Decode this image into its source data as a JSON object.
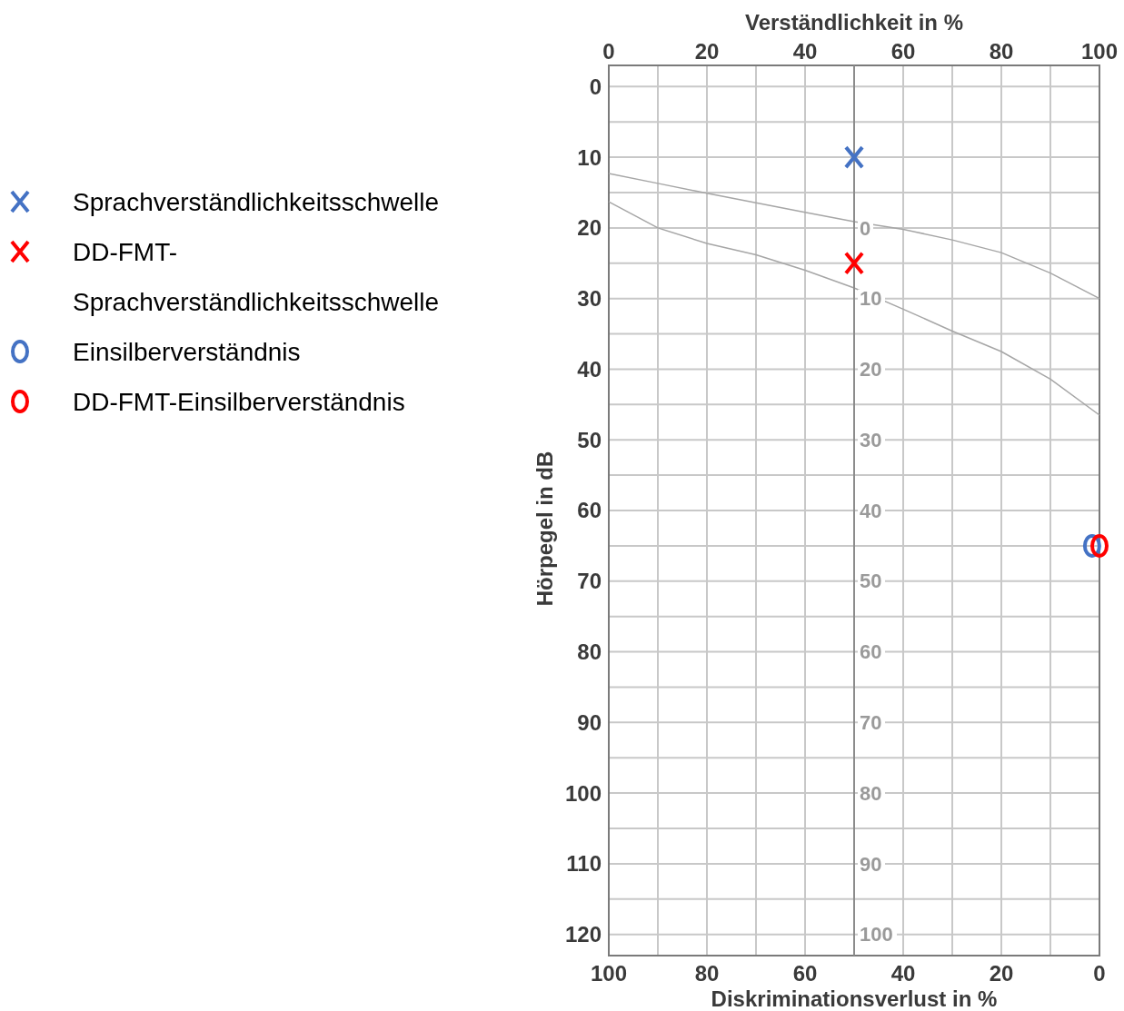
{
  "chart_data": {
    "type": "scatter",
    "xlabel": "Diskriminationsverlust in %",
    "x2label": "Verständlichkeit in %",
    "ylabel": "Hörpegel in dB",
    "xlim": [
      100,
      0
    ],
    "xticks": [
      100,
      {
        "value": 90,
        "label": null
      },
      80,
      {
        "value": 70,
        "label": null
      },
      60,
      {
        "value": 50,
        "label": null
      },
      40,
      {
        "value": 30,
        "label": null
      },
      20,
      {
        "value": 10,
        "label": null
      },
      0
    ],
    "x2lim": [
      0,
      100
    ],
    "x2ticks": [
      0,
      20,
      40,
      60,
      80,
      100
    ],
    "ylim": [
      123,
      -3
    ],
    "yticks": [
      0,
      {
        "value": 5,
        "label": null
      },
      10,
      {
        "value": 15,
        "label": null
      },
      20,
      {
        "value": 25,
        "label": null
      },
      30,
      {
        "value": 35,
        "label": null
      },
      40,
      {
        "value": 45,
        "label": null
      },
      50,
      {
        "value": 55,
        "label": null
      },
      60,
      {
        "value": 65,
        "label": null
      },
      70,
      {
        "value": 75,
        "label": null
      },
      80,
      {
        "value": 85,
        "label": null
      },
      90,
      {
        "value": 95,
        "label": null
      },
      100,
      {
        "value": 105,
        "label": null
      },
      110,
      {
        "value": 115,
        "label": null
      },
      120
    ],
    "grid": true,
    "legend": "left",
    "series": [
      {
        "type": "line",
        "color": "#a6a6a6",
        "marker": "none",
        "x": [
          100,
          90,
          80,
          60,
          50,
          40,
          30,
          20,
          10,
          0
        ],
        "values": [
          12.3,
          13.7,
          15.1,
          17.8,
          19.1,
          20.2,
          21.7,
          23.5,
          26.4,
          30
        ]
      },
      {
        "type": "line",
        "color": "#a6a6a6",
        "marker": "none",
        "x": [
          100,
          90,
          80,
          70,
          60,
          50,
          40,
          30,
          20,
          10,
          0
        ],
        "values": [
          16.3,
          20,
          22.2,
          23.8,
          26,
          28.5,
          31.5,
          34.6,
          37.5,
          41.4,
          46.5
        ]
      },
      {
        "name": "Sprachverständlichkeitsschwelle",
        "color": "#4472c4",
        "marker": "cross",
        "x": [
          50
        ],
        "values": [
          10
        ]
      },
      {
        "name": "DD-FMT-Sprachverständlichkeitsschwelle",
        "color": "#ff0000",
        "marker": "cross",
        "x": [
          50
        ],
        "values": [
          25
        ]
      },
      {
        "name": "Einsilberverständnis",
        "color": "#4472c4",
        "marker": "circle",
        "x": [
          1.5
        ],
        "values": [
          65
        ]
      },
      {
        "name": "DD-FMT-Einsilberverständnis",
        "color": "#ff0000",
        "marker": "circle",
        "x": [
          0
        ],
        "values": [
          65
        ]
      }
    ],
    "y2lim": [
      103,
      -23
    ],
    "y2ticks": [
      0,
      10,
      20,
      30,
      40,
      50,
      60,
      70,
      80,
      90,
      100
    ]
  }
}
